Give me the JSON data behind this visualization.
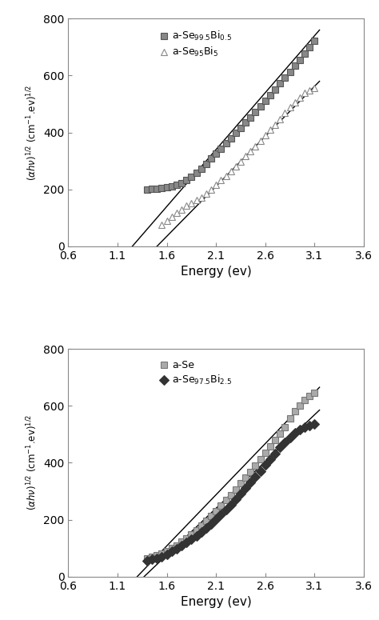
{
  "top_plot": {
    "series1": {
      "label": "a-Se$_{99.5}$Bi$_{0.5}$",
      "marker": "s",
      "marker_color": "#555555",
      "marker_face": "#888888",
      "x": [
        1.4,
        1.45,
        1.5,
        1.55,
        1.6,
        1.65,
        1.7,
        1.75,
        1.8,
        1.85,
        1.9,
        1.95,
        2.0,
        2.05,
        2.1,
        2.15,
        2.2,
        2.25,
        2.3,
        2.35,
        2.4,
        2.45,
        2.5,
        2.55,
        2.6,
        2.65,
        2.7,
        2.75,
        2.8,
        2.85,
        2.9,
        2.95,
        3.0,
        3.05,
        3.1
      ],
      "y": [
        200,
        202,
        203,
        205,
        207,
        210,
        215,
        222,
        232,
        245,
        258,
        272,
        290,
        308,
        325,
        343,
        362,
        380,
        398,
        416,
        435,
        453,
        472,
        492,
        511,
        531,
        551,
        572,
        592,
        613,
        634,
        655,
        677,
        699,
        722
      ],
      "fitline_x": [
        1.25,
        3.15
      ],
      "fitline_y": [
        0,
        760
      ]
    },
    "series2": {
      "label": "a-Se$_{95}$Bi$_{5}$",
      "marker": "^",
      "marker_color": "#888888",
      "marker_face": "white",
      "x": [
        1.55,
        1.6,
        1.65,
        1.7,
        1.75,
        1.8,
        1.85,
        1.9,
        1.95,
        2.0,
        2.05,
        2.1,
        2.15,
        2.2,
        2.25,
        2.3,
        2.35,
        2.4,
        2.45,
        2.5,
        2.55,
        2.6,
        2.65,
        2.7,
        2.75,
        2.8,
        2.85,
        2.9,
        2.95,
        3.0,
        3.05,
        3.1
      ],
      "y": [
        75,
        90,
        105,
        118,
        130,
        142,
        152,
        162,
        171,
        185,
        200,
        215,
        232,
        248,
        265,
        282,
        299,
        316,
        333,
        352,
        370,
        390,
        410,
        428,
        448,
        468,
        490,
        505,
        522,
        538,
        548,
        555
      ],
      "fitline_x": [
        1.5,
        3.15
      ],
      "fitline_y": [
        0,
        580
      ]
    },
    "ylabel": "($\\alpha h\\nu$)$^{1/2}$ (cm$^{-1}$.ev)$^{1/2}$",
    "xlabel": "Energy (ev)",
    "xlim": [
      0.6,
      3.6
    ],
    "ylim": [
      0,
      800
    ],
    "xticks": [
      0.6,
      1.1,
      1.6,
      2.1,
      2.6,
      3.1,
      3.6
    ],
    "yticks": [
      0,
      200,
      400,
      600,
      800
    ]
  },
  "bottom_plot": {
    "series1": {
      "label": "a-Se",
      "marker": "s",
      "marker_color": "#777777",
      "marker_face": "#aaaaaa",
      "x": [
        1.4,
        1.45,
        1.5,
        1.55,
        1.6,
        1.65,
        1.7,
        1.75,
        1.8,
        1.85,
        1.9,
        1.95,
        2.0,
        2.05,
        2.1,
        2.15,
        2.2,
        2.25,
        2.3,
        2.35,
        2.4,
        2.45,
        2.5,
        2.55,
        2.6,
        2.65,
        2.7,
        2.75,
        2.8,
        2.85,
        2.9,
        2.95,
        3.0,
        3.05,
        3.1
      ],
      "y": [
        65,
        70,
        75,
        80,
        90,
        100,
        110,
        122,
        135,
        148,
        163,
        178,
        195,
        212,
        230,
        248,
        268,
        287,
        306,
        327,
        348,
        368,
        390,
        413,
        436,
        458,
        480,
        503,
        525,
        555,
        582,
        600,
        620,
        635,
        645
      ],
      "fitline_x": [
        1.3,
        3.15
      ],
      "fitline_y": [
        0,
        665
      ]
    },
    "series2": {
      "label": "a-Se$_{97.5}$Bi$_{2.5}$",
      "marker": "D",
      "marker_color": "#333333",
      "marker_face": "#333333",
      "x": [
        1.4,
        1.45,
        1.5,
        1.55,
        1.6,
        1.65,
        1.7,
        1.75,
        1.8,
        1.85,
        1.9,
        1.95,
        2.0,
        2.05,
        2.1,
        2.15,
        2.2,
        2.25,
        2.3,
        2.35,
        2.4,
        2.45,
        2.5,
        2.55,
        2.6,
        2.65,
        2.7,
        2.75,
        2.8,
        2.85,
        2.9,
        2.95,
        3.0,
        3.05,
        3.1
      ],
      "y": [
        55,
        60,
        65,
        70,
        78,
        88,
        98,
        108,
        120,
        132,
        144,
        157,
        170,
        186,
        202,
        218,
        235,
        253,
        272,
        291,
        310,
        330,
        350,
        370,
        392,
        412,
        432,
        455,
        472,
        488,
        505,
        515,
        525,
        530,
        535
      ],
      "fitline_x": [
        1.37,
        3.15
      ],
      "fitline_y": [
        0,
        585
      ]
    },
    "ylabel": "($\\alpha h\\nu$)$^{1/2}$ (cm$^{-1}$.ev)$^{1/2}$",
    "xlabel": "Energy (ev)",
    "xlim": [
      0.6,
      3.6
    ],
    "ylim": [
      0,
      800
    ],
    "xticks": [
      0.6,
      1.1,
      1.6,
      2.1,
      2.6,
      3.1,
      3.6
    ],
    "yticks": [
      0,
      200,
      400,
      600,
      800
    ]
  },
  "bg_color": "#ffffff",
  "line_color": "#000000",
  "marker_size": 6
}
